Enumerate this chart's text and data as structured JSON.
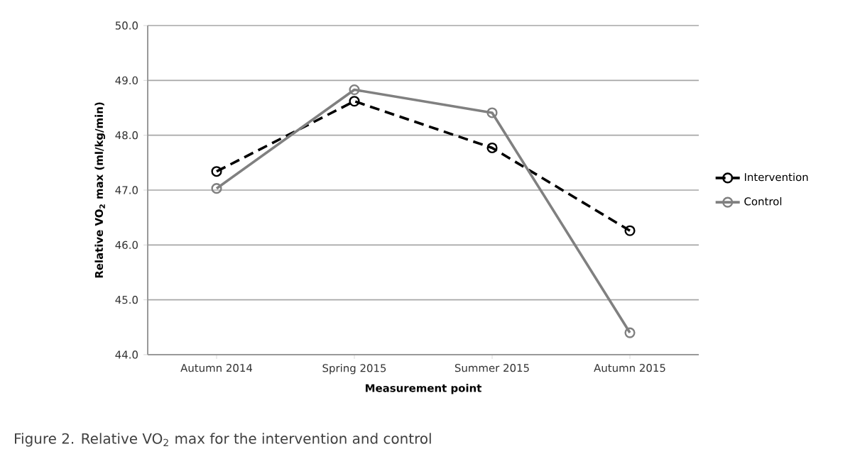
{
  "chart_data": {
    "type": "line",
    "categories": [
      "Autumn 2014",
      "Spring 2015",
      "Summer 2015",
      "Autumn 2015"
    ],
    "series": [
      {
        "name": "Intervention",
        "color": "#000000",
        "line_style": "dashed",
        "values": [
          47.34,
          48.62,
          47.77,
          46.26
        ]
      },
      {
        "name": "Control",
        "color": "#808080",
        "line_style": "solid",
        "values": [
          47.03,
          48.83,
          48.41,
          44.4
        ]
      }
    ],
    "xlabel": "Measurement point",
    "ylabel": "Relative VO$_{2}$ max (ml/kg/min)",
    "ylim": [
      44,
      50
    ],
    "yticks": [
      {
        "value": 44,
        "label": "44.0"
      },
      {
        "value": 45,
        "label": "45.0"
      },
      {
        "value": 46,
        "label": "46.0"
      },
      {
        "value": 47,
        "label": "47.0"
      },
      {
        "value": 48,
        "label": "48.0"
      },
      {
        "value": 49,
        "label": "49.0"
      },
      {
        "value": 50,
        "label": "50.0"
      }
    ],
    "grid": "y",
    "legend": "right",
    "marker": "circle",
    "annotations": [
      "Figure 2. Relative VO$_{2}$ max for the intervention and control"
    ]
  }
}
